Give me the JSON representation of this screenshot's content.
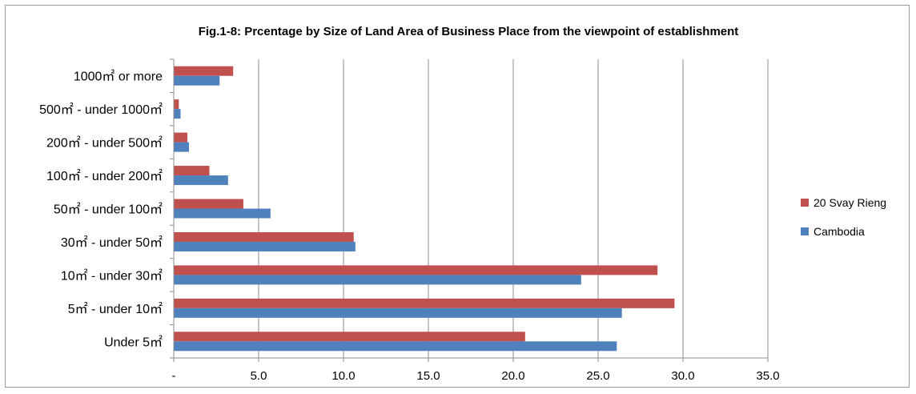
{
  "chart_data": {
    "type": "bar",
    "orientation": "horizontal",
    "title": "Fig.1-8: Prcentage by Size of Land Area of Business Place from the viewpoint of establishment",
    "categories": [
      "1000㎡ or more",
      "500㎡ - under 1000㎡",
      "200㎡ - under 500㎡",
      "100㎡ - under 200㎡",
      "50㎡ - under 100㎡",
      "30㎡ - under 50㎡",
      "10㎡ - under 30㎡",
      "5㎡ - under 10㎡",
      "Under 5㎡"
    ],
    "series": [
      {
        "name": "20 Svay Rieng",
        "color": "#c0504d",
        "values": [
          3.5,
          0.3,
          0.8,
          2.1,
          4.1,
          10.6,
          28.5,
          29.5,
          20.7
        ]
      },
      {
        "name": "Cambodia",
        "color": "#4f81bd",
        "values": [
          2.7,
          0.4,
          0.9,
          3.2,
          5.7,
          10.7,
          24.0,
          26.4,
          26.1
        ]
      }
    ],
    "xlim": [
      0,
      35
    ],
    "x_ticks": [
      "-",
      "5.0",
      "10.0",
      "15.0",
      "20.0",
      "25.0",
      "30.0",
      "35.0"
    ],
    "x_tick_values": [
      0,
      5,
      10,
      15,
      20,
      25,
      30,
      35
    ],
    "grid": true,
    "legend_position": "right"
  }
}
